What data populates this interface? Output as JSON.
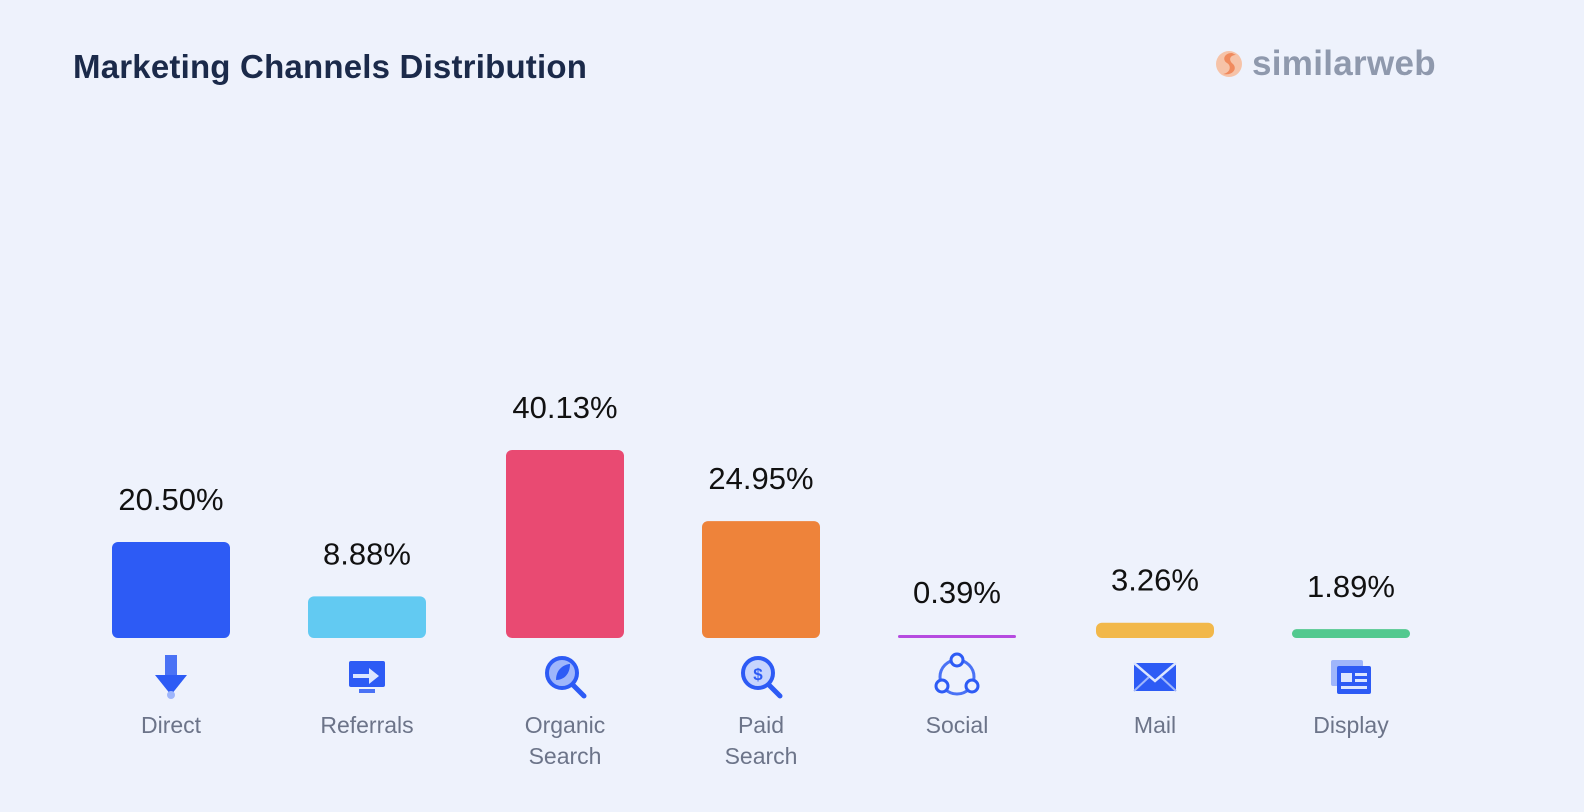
{
  "header": {
    "title": "Marketing Channels Distribution",
    "brand": "similarweb"
  },
  "colors": {
    "background": "#eef2fc",
    "brand_orange": "#f2a07b",
    "brand_gray": "#8f99ad"
  },
  "chart_data": {
    "type": "bar",
    "title": "Marketing Channels Distribution",
    "ylim": [
      0,
      40.13
    ],
    "grid": false,
    "legend": "none",
    "categories": [
      "Direct",
      "Referrals",
      "Organic Search",
      "Paid Search",
      "Social",
      "Mail",
      "Display"
    ],
    "category_lines": [
      [
        "Direct"
      ],
      [
        "Referrals"
      ],
      [
        "Organic",
        "Search"
      ],
      [
        "Paid",
        "Search"
      ],
      [
        "Social"
      ],
      [
        "Mail"
      ],
      [
        "Display"
      ]
    ],
    "values": [
      20.5,
      8.88,
      40.13,
      24.95,
      0.39,
      3.26,
      1.89
    ],
    "value_labels": [
      "20.50%",
      "8.88%",
      "40.13%",
      "24.95%",
      "0.39%",
      "3.26%",
      "1.89%"
    ],
    "colors": [
      "#2d5bf5",
      "#62caf2",
      "#e94a72",
      "#ee833a",
      "#b64be0",
      "#f2b84a",
      "#52c98f"
    ],
    "icons": [
      "direct-arrow-down-icon",
      "referrals-monitor-arrow-icon",
      "organic-search-leaf-magnifier-icon",
      "paid-search-dollar-magnifier-icon",
      "social-network-nodes-icon",
      "mail-envelope-icon",
      "display-browser-window-icon"
    ]
  }
}
